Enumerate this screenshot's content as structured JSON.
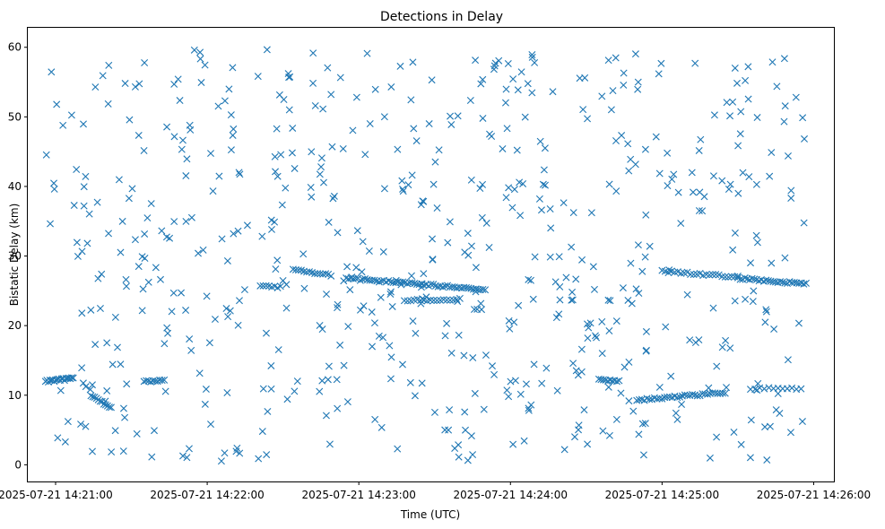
{
  "chart_data": {
    "type": "scatter",
    "title": "Detections in Delay",
    "xlabel": "Time (UTC)",
    "ylabel": "Bistatic Delay (km)",
    "xlim": [
      "2025-07-21 14:20:49",
      "2025-07-21 14:26:08"
    ],
    "ylim": [
      -2.4,
      62.8
    ],
    "x_ticks": [
      "2025-07-21 14:21:00",
      "2025-07-21 14:22:00",
      "2025-07-21 14:23:00",
      "2025-07-21 14:24:00",
      "2025-07-21 14:25:00",
      "2025-07-21 14:26:00"
    ],
    "y_ticks": [
      0,
      10,
      20,
      30,
      40,
      50,
      60
    ],
    "marker": "x",
    "color": "#1f77b4",
    "grid": false,
    "tracks": [
      {
        "x_start": "2025-07-21 14:20:56",
        "x_end": "2025-07-21 14:21:07",
        "y_start": 12.0,
        "y_end": 12.4,
        "points": 20
      },
      {
        "x_start": "2025-07-21 14:21:14",
        "x_end": "2025-07-21 14:21:22",
        "y_start": 10.0,
        "y_end": 8.2,
        "points": 12
      },
      {
        "x_start": "2025-07-21 14:21:35",
        "x_end": "2025-07-21 14:21:43",
        "y_start": 12.0,
        "y_end": 12.1,
        "points": 10
      },
      {
        "x_start": "2025-07-21 14:22:21",
        "x_end": "2025-07-21 14:22:29",
        "y_start": 25.8,
        "y_end": 25.5,
        "points": 8
      },
      {
        "x_start": "2025-07-21 14:22:34",
        "x_end": "2025-07-21 14:22:49",
        "y_start": 28.0,
        "y_end": 27.2,
        "points": 15
      },
      {
        "x_start": "2025-07-21 14:22:55",
        "x_end": "2025-07-21 14:23:50",
        "y_start": 26.8,
        "y_end": 25.2,
        "points": 60
      },
      {
        "x_start": "2025-07-21 14:23:18",
        "x_end": "2025-07-21 14:23:40",
        "y_start": 23.6,
        "y_end": 23.8,
        "points": 18
      },
      {
        "x_start": "2025-07-21 14:24:35",
        "x_end": "2025-07-21 14:24:43",
        "y_start": 12.3,
        "y_end": 12.0,
        "points": 10
      },
      {
        "x_start": "2025-07-21 14:24:50",
        "x_end": "2025-07-21 14:25:25",
        "y_start": 9.3,
        "y_end": 10.4,
        "points": 36
      },
      {
        "x_start": "2025-07-21 14:25:00",
        "x_end": "2025-07-21 14:25:30",
        "y_start": 27.8,
        "y_end": 27.0,
        "points": 25
      },
      {
        "x_start": "2025-07-21 14:25:30",
        "x_end": "2025-07-21 14:25:57",
        "y_start": 26.8,
        "y_end": 26.0,
        "points": 30
      },
      {
        "x_start": "2025-07-21 14:25:35",
        "x_end": "2025-07-21 14:25:55",
        "y_start": 11.0,
        "y_end": 11.0,
        "points": 12
      }
    ],
    "clutter": {
      "x_range": [
        "2025-07-21 14:20:56",
        "2025-07-21 14:25:57"
      ],
      "y_range": [
        0.5,
        59.8
      ],
      "points": 620
    }
  }
}
